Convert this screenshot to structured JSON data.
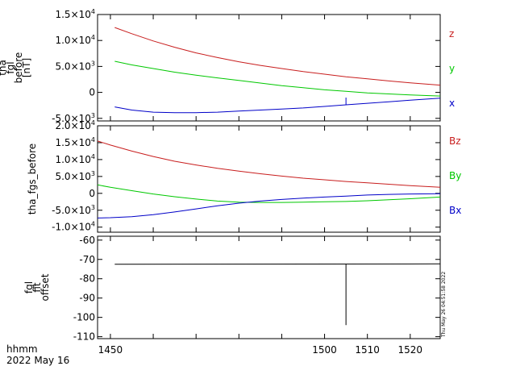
{
  "footer": {
    "time_label": "hhmm",
    "date_label": "2022 May 16",
    "timestamp": "Thu May 26 04:51:58 2022"
  },
  "chart_data": [
    {
      "type": "line",
      "ylabel_lines": [
        "tha",
        "fgl",
        "before",
        "[nT]"
      ],
      "ylim": [
        -5500,
        15000
      ],
      "yticks": [
        {
          "v": 15000,
          "label": "1.5×10",
          "exp": "4"
        },
        {
          "v": 10000,
          "label": "1.0×10",
          "exp": "4"
        },
        {
          "v": 5000,
          "label": "5.0×10",
          "exp": "3"
        },
        {
          "v": 0,
          "label": "0",
          "exp": ""
        },
        {
          "v": -5000,
          "label": "-5.0×10",
          "exp": "3"
        }
      ],
      "xlim": [
        1447,
        1527
      ],
      "series": [
        {
          "name": "z",
          "color": "#c81e1e",
          "x": [
            1451,
            1455,
            1460,
            1465,
            1470,
            1475,
            1480,
            1485,
            1490,
            1495,
            1500,
            1505,
            1510,
            1515,
            1520,
            1527
          ],
          "y": [
            12500,
            11300,
            9900,
            8700,
            7600,
            6700,
            5900,
            5200,
            4600,
            4000,
            3500,
            3000,
            2600,
            2200,
            1850,
            1400
          ]
        },
        {
          "name": "y",
          "color": "#00c800",
          "x": [
            1451,
            1455,
            1460,
            1465,
            1470,
            1475,
            1480,
            1485,
            1490,
            1495,
            1500,
            1505,
            1510,
            1515,
            1520,
            1527
          ],
          "y": [
            6000,
            5300,
            4600,
            3900,
            3300,
            2800,
            2300,
            1800,
            1300,
            900,
            500,
            200,
            -100,
            -300,
            -500,
            -700
          ]
        },
        {
          "name": "x",
          "color": "#0000c8",
          "x": [
            1451,
            1455,
            1460,
            1465,
            1470,
            1475,
            1480,
            1485,
            1490,
            1495,
            1500,
            1505,
            1510,
            1515,
            1520,
            1527
          ],
          "y": [
            -2800,
            -3400,
            -3800,
            -3900,
            -3900,
            -3800,
            -3600,
            -3400,
            -3200,
            -3000,
            -2700,
            -2400,
            -2100,
            -1800,
            -1500,
            -1100
          ]
        }
      ],
      "spike": {
        "x": 1505,
        "series": "x",
        "y0": -2400,
        "y1": -1000
      }
    },
    {
      "type": "line",
      "ylabel_lines": [
        "tha_fgs_before"
      ],
      "ylim": [
        -11500,
        20000
      ],
      "yticks": [
        {
          "v": 20000,
          "label": "2.0×10",
          "exp": "4"
        },
        {
          "v": 15000,
          "label": "1.5×10",
          "exp": "4"
        },
        {
          "v": 10000,
          "label": "1.0×10",
          "exp": "4"
        },
        {
          "v": 5000,
          "label": "5.0×10",
          "exp": "3"
        },
        {
          "v": 0,
          "label": "0",
          "exp": ""
        },
        {
          "v": -5000,
          "label": "-5.0×10",
          "exp": "3"
        },
        {
          "v": -10000,
          "label": "-1.0×10",
          "exp": "4"
        }
      ],
      "xlim": [
        1447,
        1527
      ],
      "series": [
        {
          "name": "Bz",
          "color": "#c81e1e",
          "x": [
            1447,
            1450,
            1455,
            1460,
            1465,
            1470,
            1475,
            1480,
            1485,
            1490,
            1495,
            1500,
            1505,
            1510,
            1515,
            1520,
            1527
          ],
          "y": [
            15500,
            14300,
            12500,
            10900,
            9500,
            8400,
            7400,
            6600,
            5800,
            5100,
            4500,
            4000,
            3500,
            3100,
            2700,
            2300,
            1800
          ]
        },
        {
          "name": "By",
          "color": "#00c800",
          "x": [
            1447,
            1450,
            1455,
            1460,
            1465,
            1470,
            1475,
            1480,
            1485,
            1490,
            1495,
            1500,
            1505,
            1510,
            1515,
            1520,
            1527
          ],
          "y": [
            2500,
            1800,
            800,
            -200,
            -1000,
            -1700,
            -2300,
            -2600,
            -2700,
            -2700,
            -2600,
            -2500,
            -2400,
            -2200,
            -1900,
            -1600,
            -1100
          ]
        },
        {
          "name": "Bx",
          "color": "#0000c8",
          "x": [
            1447,
            1450,
            1455,
            1460,
            1465,
            1470,
            1475,
            1480,
            1485,
            1490,
            1495,
            1500,
            1505,
            1510,
            1515,
            1520,
            1527
          ],
          "y": [
            -7300,
            -7200,
            -6900,
            -6300,
            -5500,
            -4600,
            -3700,
            -2900,
            -2300,
            -1800,
            -1400,
            -1100,
            -800,
            -500,
            -300,
            -200,
            -100
          ]
        }
      ]
    },
    {
      "type": "line",
      "ylabel_lines": [
        "fgl",
        "fit",
        "offset"
      ],
      "ylim": [
        -111,
        -58
      ],
      "yticks": [
        {
          "v": -60,
          "label": "-60",
          "exp": ""
        },
        {
          "v": -70,
          "label": "-70",
          "exp": ""
        },
        {
          "v": -80,
          "label": "-80",
          "exp": ""
        },
        {
          "v": -90,
          "label": "-90",
          "exp": ""
        },
        {
          "v": -100,
          "label": "-100",
          "exp": ""
        },
        {
          "v": -110,
          "label": "-110",
          "exp": ""
        }
      ],
      "xlim": [
        1447,
        1527
      ],
      "xticks": [
        1450,
        1460,
        1470,
        1480,
        1490,
        1500,
        1510,
        1520
      ],
      "xtick_labels": [
        {
          "v": 1450,
          "label": "1450"
        },
        {
          "v": 1500,
          "label": "1500"
        },
        {
          "v": 1510,
          "label": "1510"
        },
        {
          "v": 1520,
          "label": "1520"
        }
      ],
      "series": [
        {
          "name": "",
          "color": "#000000",
          "x": [
            1451,
            1527
          ],
          "y": [
            -72.5,
            -72.3
          ]
        }
      ],
      "spike": {
        "x": 1505,
        "series": "",
        "y0": -72.5,
        "y1": -104
      }
    }
  ]
}
